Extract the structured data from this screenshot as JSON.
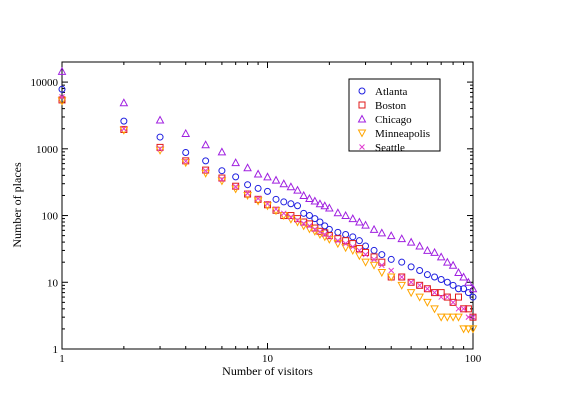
{
  "chart_data": {
    "type": "scatter",
    "title": "",
    "xlabel": "Number of visitors",
    "ylabel": "Number of places",
    "xscale": "log",
    "yscale": "log",
    "xlim": [
      1,
      100
    ],
    "ylim": [
      1,
      20000
    ],
    "grid": false,
    "legend_position": "top-right",
    "x_ticks": [
      {
        "value": 1,
        "label": "1"
      },
      {
        "value": 10,
        "label": "10"
      },
      {
        "value": 100,
        "label": "100"
      }
    ],
    "y_ticks": [
      {
        "value": 1,
        "label": "1"
      },
      {
        "value": 10,
        "label": "10"
      },
      {
        "value": 100,
        "label": "100"
      },
      {
        "value": 1000,
        "label": "1000"
      },
      {
        "value": 10000,
        "label": "10000"
      }
    ],
    "series": [
      {
        "name": "Atlanta",
        "marker": "circle",
        "color": "#1f1fe0",
        "x": [
          1,
          2,
          3,
          4,
          5,
          6,
          7,
          8,
          9,
          10,
          11,
          12,
          13,
          14,
          15,
          16,
          17,
          18,
          19,
          20,
          22,
          24,
          26,
          28,
          30,
          33,
          36,
          40,
          45,
          50,
          55,
          60,
          65,
          70,
          75,
          80,
          85,
          90,
          95,
          100
        ],
        "y": [
          7800,
          2600,
          1500,
          880,
          660,
          470,
          380,
          290,
          255,
          230,
          175,
          160,
          150,
          140,
          108,
          100,
          90,
          80,
          70,
          62,
          56,
          52,
          48,
          42,
          35,
          30,
          26,
          22,
          20,
          17,
          15,
          13,
          12,
          11,
          10,
          9,
          8,
          8,
          7,
          6
        ]
      },
      {
        "name": "Boston",
        "marker": "square",
        "color": "#e01a1a",
        "x": [
          1,
          2,
          3,
          4,
          5,
          6,
          7,
          8,
          9,
          10,
          11,
          12,
          13,
          14,
          15,
          16,
          17,
          18,
          19,
          20,
          22,
          24,
          26,
          28,
          30,
          33,
          36,
          40,
          45,
          50,
          55,
          60,
          65,
          70,
          75,
          80,
          85,
          90,
          95,
          100
        ],
        "y": [
          5400,
          1950,
          1050,
          660,
          480,
          365,
          275,
          210,
          175,
          145,
          120,
          100,
          100,
          90,
          80,
          75,
          65,
          58,
          55,
          50,
          45,
          42,
          38,
          32,
          28,
          24,
          20,
          12,
          12,
          10,
          9,
          8,
          7,
          7,
          6,
          5,
          6,
          4,
          4,
          3
        ]
      },
      {
        "name": "Chicago",
        "marker": "triangle-up",
        "color": "#a020e0",
        "x": [
          1,
          2,
          3,
          4,
          5,
          6,
          7,
          8,
          9,
          10,
          11,
          12,
          13,
          14,
          15,
          16,
          17,
          18,
          19,
          20,
          22,
          24,
          26,
          28,
          30,
          33,
          36,
          40,
          45,
          50,
          55,
          60,
          65,
          70,
          75,
          80,
          85,
          90,
          95,
          100
        ],
        "y": [
          14500,
          4900,
          2700,
          1700,
          1150,
          900,
          620,
          520,
          420,
          380,
          340,
          300,
          270,
          240,
          200,
          180,
          165,
          150,
          140,
          130,
          110,
          100,
          90,
          80,
          72,
          62,
          55,
          50,
          45,
          40,
          35,
          30,
          28,
          24,
          20,
          18,
          14,
          12,
          10,
          8
        ]
      },
      {
        "name": "Minneapolis",
        "marker": "triangle-down",
        "color": "#ffa500",
        "x": [
          1,
          2,
          3,
          4,
          5,
          6,
          7,
          8,
          9,
          10,
          11,
          12,
          13,
          14,
          15,
          16,
          17,
          18,
          19,
          20,
          22,
          24,
          26,
          28,
          30,
          33,
          36,
          40,
          45,
          50,
          55,
          60,
          65,
          70,
          75,
          80,
          85,
          90,
          95,
          100
        ],
        "y": [
          5200,
          1900,
          950,
          620,
          430,
          330,
          250,
          200,
          165,
          140,
          118,
          100,
          88,
          80,
          70,
          63,
          58,
          52,
          48,
          44,
          38,
          33,
          30,
          25,
          20,
          18,
          14,
          12,
          9,
          7,
          6,
          5,
          4,
          3,
          3,
          3,
          3,
          2,
          2,
          2
        ]
      },
      {
        "name": "Seattle",
        "marker": "x",
        "color": "#e03ad0",
        "x": [
          1,
          2,
          3,
          4,
          5,
          6,
          7,
          8,
          9,
          10,
          11,
          12,
          13,
          14,
          15,
          16,
          17,
          18,
          19,
          20,
          22,
          24,
          26,
          28,
          30,
          33,
          36,
          40,
          45,
          50,
          55,
          60,
          65,
          70,
          75,
          80,
          85,
          90,
          95,
          100
        ],
        "y": [
          6000,
          2000,
          1000,
          650,
          470,
          350,
          270,
          215,
          180,
          150,
          125,
          108,
          95,
          85,
          76,
          70,
          62,
          57,
          52,
          48,
          42,
          38,
          34,
          30,
          26,
          22,
          18,
          15,
          12,
          10,
          9,
          8,
          7,
          6,
          6,
          5,
          4,
          4,
          3,
          3
        ]
      }
    ]
  }
}
